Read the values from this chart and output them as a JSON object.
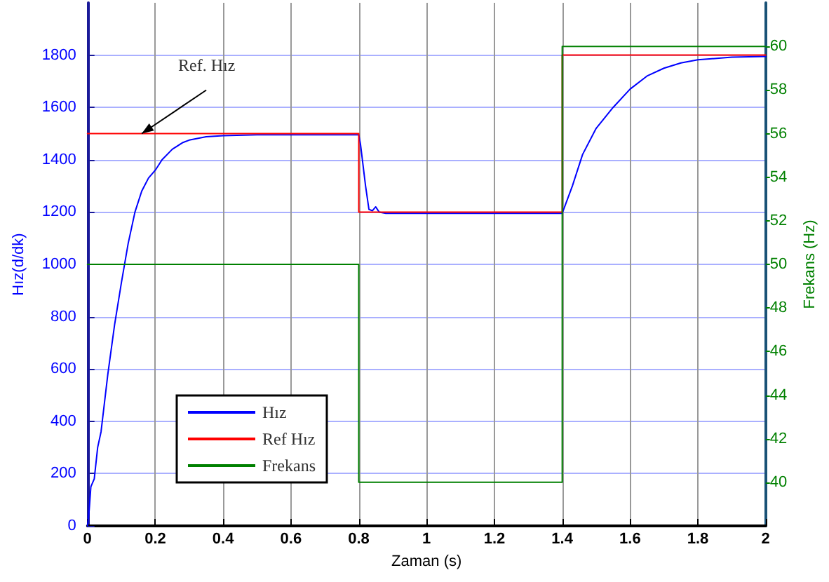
{
  "chart_data": {
    "type": "line",
    "xlabel": "Zaman (s)",
    "ylabel": "Hız(d/dk)",
    "y2label": "Frekans (Hz)",
    "xlim": [
      0,
      2
    ],
    "xticks": [
      0,
      0.2,
      0.4,
      0.6,
      0.8,
      1,
      1.2,
      1.4,
      1.6,
      1.8,
      2
    ],
    "ylim": [
      0,
      2000
    ],
    "yticks": [
      0,
      200,
      400,
      600,
      800,
      1000,
      1200,
      1400,
      1600,
      1800
    ],
    "y2lim": [
      38,
      62
    ],
    "y2ticks": [
      40,
      42,
      44,
      46,
      48,
      50,
      52,
      54,
      56,
      58,
      60
    ],
    "grid": true,
    "legend": "bottom left",
    "annotations": [
      {
        "text": "Ref. Hız",
        "x": 0.16,
        "y": 1500
      }
    ],
    "series": [
      {
        "name": "Hız",
        "color": "#0000ff",
        "x": [
          0,
          0.005,
          0.01,
          0.02,
          0.03,
          0.04,
          0.05,
          0.06,
          0.08,
          0.1,
          0.12,
          0.14,
          0.16,
          0.18,
          0.2,
          0.22,
          0.25,
          0.28,
          0.3,
          0.35,
          0.4,
          0.5,
          0.6,
          0.7,
          0.8,
          0.805,
          0.82,
          0.83,
          0.84,
          0.85,
          0.86,
          0.88,
          0.9,
          1.0,
          1.2,
          1.4,
          1.41,
          1.43,
          1.46,
          1.5,
          1.55,
          1.6,
          1.65,
          1.7,
          1.75,
          1.8,
          1.9,
          2.0
        ],
        "values": [
          0,
          60,
          150,
          180,
          300,
          360,
          470,
          580,
          770,
          930,
          1080,
          1200,
          1280,
          1330,
          1360,
          1400,
          1440,
          1465,
          1475,
          1488,
          1492,
          1495,
          1495,
          1495,
          1495,
          1460,
          1300,
          1210,
          1205,
          1220,
          1200,
          1195,
          1195,
          1195,
          1195,
          1195,
          1230,
          1300,
          1420,
          1520,
          1600,
          1670,
          1720,
          1750,
          1770,
          1782,
          1792,
          1795
        ]
      },
      {
        "name": "Ref Hız",
        "color": "#ff0000",
        "x": [
          0,
          0.8,
          0.8,
          1.4,
          1.4,
          2
        ],
        "values": [
          1500,
          1500,
          1200,
          1200,
          1800,
          1800
        ]
      },
      {
        "name": "Frekans",
        "color": "#008000",
        "axis": "y2",
        "x": [
          0,
          0.8,
          0.8,
          1.4,
          1.4,
          2
        ],
        "values": [
          50,
          50,
          40,
          40,
          60,
          60
        ]
      }
    ]
  }
}
